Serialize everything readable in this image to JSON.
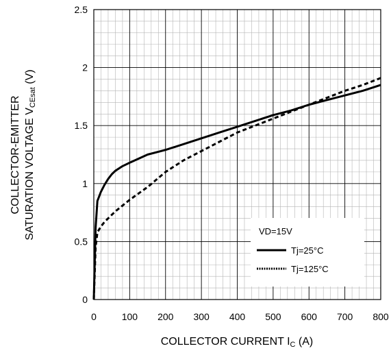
{
  "chart_data": {
    "type": "line",
    "title": "",
    "xlabel_main": "COLLECTOR CURRENT I",
    "xlabel_sub": "C",
    "xlabel_tail": " (A)",
    "ylabel_line1": "COLLECTOR-EMITTER",
    "ylabel_line2_main": "SATURATION VOLTAGE V",
    "ylabel_line2_sub": "CEsat",
    "ylabel_line2_tail": " (V)",
    "xlim": [
      0,
      800
    ],
    "ylim": [
      0,
      2.5
    ],
    "xticks": [
      "0",
      "100",
      "200",
      "300",
      "400",
      "500",
      "600",
      "700",
      "800"
    ],
    "yticks": [
      "0",
      "0.5",
      "1",
      "1.5",
      "2",
      "2.5"
    ],
    "grid": true,
    "legend_position": "bottom-right",
    "legend_title": "VD=15V",
    "series": [
      {
        "name": "Tj=25°C",
        "style": "solid",
        "color": "#000000",
        "x": [
          0,
          5,
          10,
          20,
          30,
          40,
          50,
          60,
          80,
          100,
          150,
          200,
          250,
          300,
          350,
          400,
          450,
          500,
          550,
          600,
          650,
          700,
          750,
          800
        ],
        "y": [
          0,
          0.62,
          0.85,
          0.93,
          0.99,
          1.04,
          1.08,
          1.11,
          1.15,
          1.18,
          1.25,
          1.29,
          1.34,
          1.39,
          1.44,
          1.49,
          1.54,
          1.59,
          1.63,
          1.68,
          1.72,
          1.76,
          1.8,
          1.85
        ]
      },
      {
        "name": "Tj=125°C",
        "style": "dotted",
        "color": "#000000",
        "x": [
          0,
          5,
          10,
          20,
          30,
          40,
          50,
          60,
          80,
          100,
          150,
          200,
          250,
          300,
          350,
          400,
          450,
          500,
          550,
          600,
          650,
          700,
          750,
          800
        ],
        "y": [
          0,
          0.45,
          0.58,
          0.63,
          0.67,
          0.7,
          0.73,
          0.76,
          0.81,
          0.86,
          0.97,
          1.1,
          1.2,
          1.28,
          1.36,
          1.44,
          1.5,
          1.56,
          1.62,
          1.68,
          1.74,
          1.8,
          1.85,
          1.91
        ]
      }
    ]
  }
}
